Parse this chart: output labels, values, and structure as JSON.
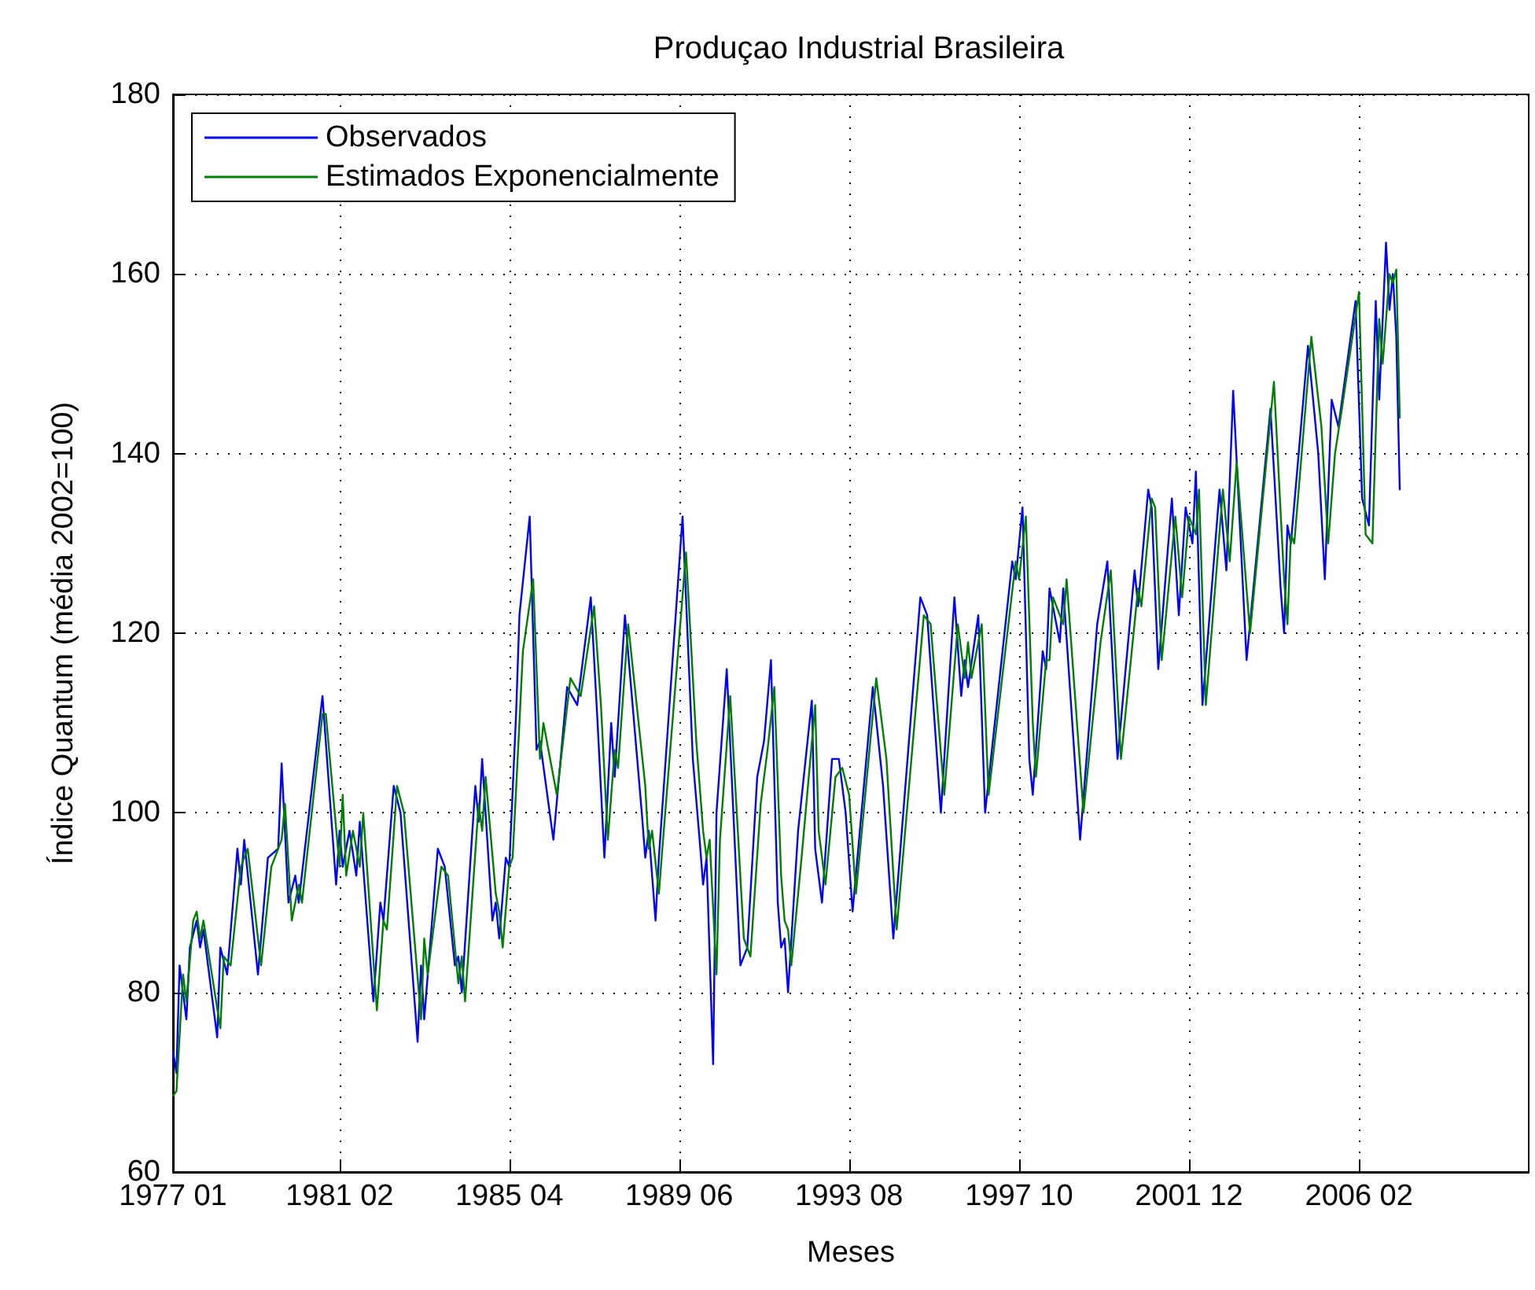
{
  "chart_data": {
    "type": "line",
    "title": "Produçao Industrial Brasileira",
    "xlabel": "Meses",
    "ylabel": "Índice Quantum (média 2002=100)",
    "xlim": [
      "1977-01",
      "2010-04"
    ],
    "xticks": [
      {
        "value": "1977-01",
        "label": "1977 01"
      },
      {
        "value": "1981-02",
        "label": "1981 02"
      },
      {
        "value": "1985-04",
        "label": "1985 04"
      },
      {
        "value": "1989-06",
        "label": "1989 06"
      },
      {
        "value": "1993-08",
        "label": "1993 08"
      },
      {
        "value": "1997-10",
        "label": "1997 10"
      },
      {
        "value": "2001-12",
        "label": "2001 12"
      },
      {
        "value": "2006-02",
        "label": "2006 02"
      }
    ],
    "ylim": [
      60,
      180
    ],
    "yticks": [
      60,
      80,
      100,
      120,
      140,
      160,
      180
    ],
    "grid": true,
    "legend": "top left",
    "marker": "none",
    "line_style": "solid",
    "series": [
      {
        "name": "Observados",
        "color": "#0000ff",
        "x": [
          "1977-01",
          "1977-02",
          "1977-03",
          "1977-05",
          "1977-06",
          "1977-08",
          "1977-09",
          "1977-10",
          "1978-02",
          "1978-03",
          "1978-05",
          "1978-08",
          "1978-09",
          "1978-10",
          "1979-02",
          "1979-05",
          "1979-08",
          "1979-09",
          "1979-11",
          "1980-01",
          "1980-02",
          "1980-09",
          "1981-01",
          "1981-02",
          "1981-03",
          "1981-05",
          "1981-07",
          "1981-08",
          "1981-12",
          "1982-02",
          "1982-03",
          "1982-06",
          "1982-08",
          "1983-01",
          "1983-02",
          "1983-03",
          "1983-07",
          "1983-09",
          "1983-12",
          "1984-01",
          "1984-02",
          "1984-06",
          "1984-07",
          "1984-08",
          "1984-11",
          "1984-12",
          "1985-01",
          "1985-03",
          "1985-04",
          "1985-06",
          "1985-07",
          "1985-10",
          "1985-12",
          "1986-01",
          "1986-05",
          "1986-09",
          "1986-12",
          "1987-04",
          "1987-06",
          "1987-08",
          "1987-10",
          "1987-11",
          "1988-02",
          "1988-07",
          "1988-08",
          "1988-09",
          "1988-11",
          "1988-12",
          "1989-07",
          "1989-10",
          "1989-12",
          "1990-01",
          "1990-02",
          "1990-04",
          "1990-05",
          "1990-08",
          "1990-12",
          "1991-02",
          "1991-05",
          "1991-07",
          "1991-09",
          "1991-11",
          "1991-12",
          "1992-01",
          "1992-02",
          "1992-05",
          "1992-09",
          "1992-10",
          "1992-12",
          "1993-03",
          "1993-05",
          "1993-07",
          "1993-09",
          "1994-03",
          "1994-06",
          "1994-09",
          "1995-05",
          "1995-07",
          "1995-11",
          "1996-03",
          "1996-05",
          "1996-06",
          "1996-07",
          "1996-10",
          "1996-12",
          "1997-08",
          "1997-09",
          "1997-11",
          "1998-01",
          "1998-02",
          "1998-05",
          "1998-06",
          "1998-07",
          "1998-10",
          "1998-11",
          "1999-04",
          "1999-09",
          "1999-12",
          "2000-03",
          "2000-08",
          "2000-09",
          "2000-12",
          "2001-01",
          "2001-03",
          "2001-07",
          "2001-09",
          "2001-11",
          "2002-01",
          "2002-02",
          "2002-04",
          "2002-09",
          "2002-11",
          "2003-01",
          "2003-05",
          "2003-12",
          "2004-03",
          "2004-04",
          "2004-05",
          "2004-06",
          "2004-11",
          "2005-02",
          "2005-04",
          "2005-06",
          "2005-08",
          "2006-01",
          "2006-03",
          "2006-05",
          "2006-07",
          "2006-08",
          "2006-10",
          "2006-11",
          "2006-12",
          "2007-01",
          "2007-02"
        ],
        "values": [
          73.5,
          71,
          83,
          77,
          85,
          88,
          85,
          87,
          75,
          85,
          82,
          96,
          92,
          97,
          82,
          95,
          96,
          105.5,
          90,
          93,
          90,
          113,
          92,
          98,
          94,
          98,
          93,
          99,
          79,
          90,
          88,
          103,
          100,
          74.5,
          83,
          77,
          96,
          94,
          83,
          84,
          80,
          103,
          99,
          106,
          88,
          90,
          86,
          95,
          94,
          111,
          122,
          133,
          107,
          108,
          97,
          114,
          112,
          124,
          110,
          95,
          110,
          104,
          122,
          100,
          95,
          98,
          88,
          95,
          133,
          106,
          97,
          92,
          95,
          72,
          100,
          116,
          83,
          85,
          104,
          108,
          117,
          90,
          85,
          86,
          80,
          98,
          112.5,
          96,
          90,
          106,
          106,
          100,
          89,
          114,
          103,
          86,
          124,
          122,
          100,
          124,
          113,
          117,
          114,
          122,
          100,
          128,
          126,
          134,
          106,
          102,
          118,
          116,
          125,
          119,
          125,
          97,
          121,
          128,
          106,
          127,
          123,
          136,
          134,
          116,
          135,
          122,
          134,
          130,
          138,
          112,
          136,
          127,
          147,
          117,
          145,
          125,
          120,
          132,
          130,
          152,
          140,
          126,
          146,
          143,
          157,
          135,
          132,
          157,
          146,
          163.5,
          156,
          160,
          153,
          136
        ]
      },
      {
        "name": "Estimados Exponencialmente",
        "color": "#008000",
        "x": [
          "1977-01",
          "1977-02",
          "1977-04",
          "1977-05",
          "1977-07",
          "1977-08",
          "1977-09",
          "1977-10",
          "1978-03",
          "1978-04",
          "1978-06",
          "1978-09",
          "1978-10",
          "1978-11",
          "1979-03",
          "1979-06",
          "1979-09",
          "1979-10",
          "1979-12",
          "1980-02",
          "1980-03",
          "1980-09",
          "1980-10",
          "1981-02",
          "1981-03",
          "1981-04",
          "1981-06",
          "1981-08",
          "1981-09",
          "1982-01",
          "1982-03",
          "1982-04",
          "1982-07",
          "1982-09",
          "1983-02",
          "1983-03",
          "1983-04",
          "1983-08",
          "1983-10",
          "1984-01",
          "1984-02",
          "1984-03",
          "1984-07",
          "1984-08",
          "1984-09",
          "1984-12",
          "1985-01",
          "1985-02",
          "1985-04",
          "1985-05",
          "1985-07",
          "1985-08",
          "1985-11",
          "1986-01",
          "1986-02",
          "1986-06",
          "1986-10",
          "1987-01",
          "1987-05",
          "1987-07",
          "1987-09",
          "1987-11",
          "1987-12",
          "1988-03",
          "1988-08",
          "1988-09",
          "1988-10",
          "1988-12",
          "1989-01",
          "1989-08",
          "1989-11",
          "1990-01",
          "1990-02",
          "1990-03",
          "1990-05",
          "1990-06",
          "1990-09",
          "1991-01",
          "1991-03",
          "1991-06",
          "1991-08",
          "1991-10",
          "1991-12",
          "1992-01",
          "1992-02",
          "1992-03",
          "1992-06",
          "1992-10",
          "1992-11",
          "1993-01",
          "1993-04",
          "1993-06",
          "1993-08",
          "1993-10",
          "1994-04",
          "1994-07",
          "1994-10",
          "1995-06",
          "1995-08",
          "1995-12",
          "1996-04",
          "1996-06",
          "1996-07",
          "1996-08",
          "1996-11",
          "1997-01",
          "1997-09",
          "1997-10",
          "1997-12",
          "1998-02",
          "1998-03",
          "1998-06",
          "1998-07",
          "1998-08",
          "1998-11",
          "1998-12",
          "1999-05",
          "1999-10",
          "2000-01",
          "2000-04",
          "2000-09",
          "2000-10",
          "2001-01",
          "2001-02",
          "2001-04",
          "2001-08",
          "2001-10",
          "2001-12",
          "2002-02",
          "2002-03",
          "2002-05",
          "2002-10",
          "2002-12",
          "2003-02",
          "2003-06",
          "2004-01",
          "2004-04",
          "2004-05",
          "2004-06",
          "2004-07",
          "2004-12",
          "2005-03",
          "2005-05",
          "2005-07",
          "2005-09",
          "2006-02",
          "2006-04",
          "2006-06",
          "2006-08",
          "2006-09",
          "2006-11",
          "2006-12",
          "2007-01",
          "2007-02"
        ],
        "values": [
          68.5,
          69,
          82,
          79,
          88,
          89,
          86,
          88,
          76,
          84,
          83,
          94,
          95,
          96,
          83,
          94,
          97,
          101,
          88,
          92,
          90,
          111,
          111,
          94,
          102,
          93,
          98,
          94,
          100,
          78,
          88,
          87,
          103,
          100,
          77,
          86,
          82,
          94,
          93,
          81,
          84,
          79,
          101,
          98,
          104,
          91,
          89,
          85,
          94,
          95,
          110,
          118,
          126,
          106,
          110,
          102,
          115,
          113,
          123,
          112,
          97,
          107,
          105,
          121,
          103,
          96,
          98,
          91,
          96,
          129,
          108,
          98,
          95,
          97,
          82,
          97,
          113,
          86,
          84,
          101,
          107,
          114,
          93,
          88,
          87,
          83,
          95,
          112,
          98,
          92,
          104,
          105,
          102,
          91,
          115,
          106,
          87,
          122,
          121,
          102,
          121,
          115,
          119,
          115,
          121,
          102,
          128,
          126,
          133,
          110,
          104,
          117,
          117,
          124,
          121,
          126,
          100,
          119,
          127,
          106,
          125,
          123,
          135,
          134,
          117,
          133,
          124,
          133,
          131,
          136,
          112,
          136,
          128,
          139,
          120,
          148,
          126,
          121,
          131,
          130,
          153,
          143,
          130,
          140,
          145,
          158,
          131,
          130,
          155,
          150,
          160,
          159,
          160.5,
          144
        ]
      }
    ]
  }
}
